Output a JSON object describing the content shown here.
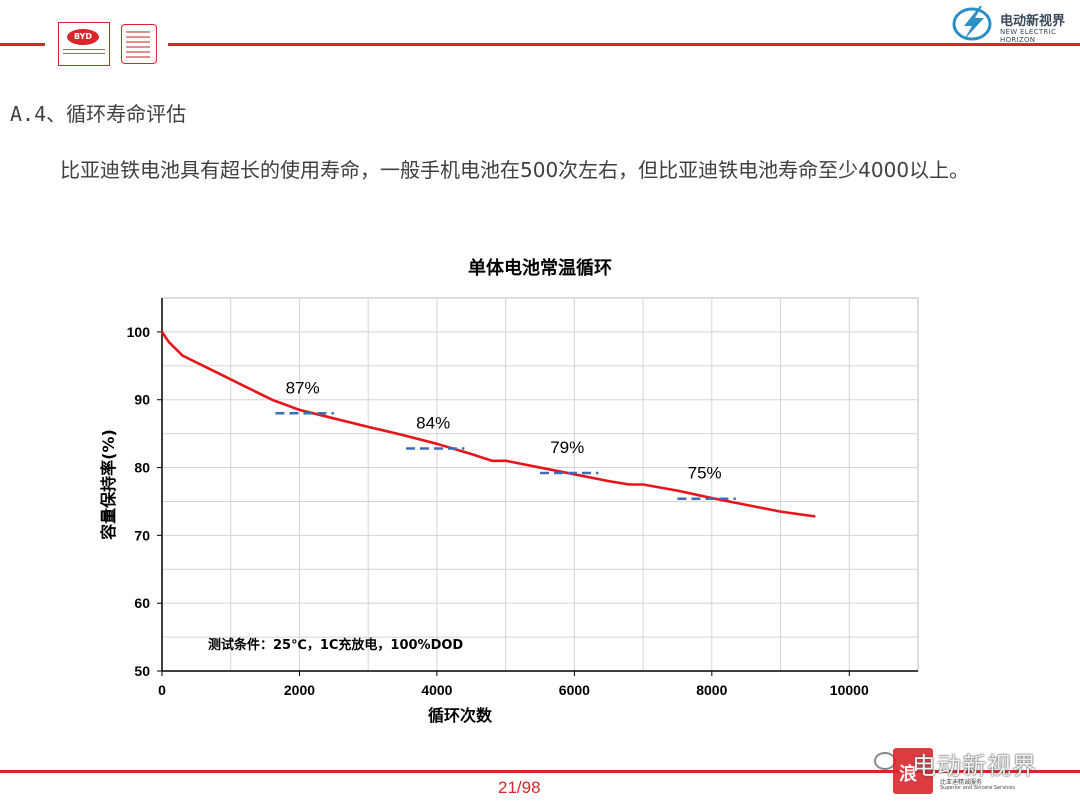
{
  "header": {
    "byd_logo_text": "BYD",
    "ev_logo_name": "电动新视界",
    "ev_logo_en": "NEW ELECTRIC HORIZON",
    "accent_color": "#d9262c"
  },
  "section": {
    "heading": "A.4、循环寿命评估"
  },
  "paragraph": {
    "text": "比亚迪铁电池具有超长的使用寿命，一般手机电池在500次左右，但比亚迪铁电池寿命至少4000以上。"
  },
  "chart_data": {
    "type": "line",
    "title": "单体电池常温循环",
    "xlabel": "循环次数",
    "ylabel": "容量保持率(%)",
    "xlim": [
      0,
      11000
    ],
    "ylim": [
      50,
      105
    ],
    "xticks": [
      0,
      2000,
      4000,
      6000,
      8000,
      10000
    ],
    "yticks": [
      50,
      60,
      70,
      80,
      90,
      100
    ],
    "grid": true,
    "series": [
      {
        "color": "#e8141b",
        "x": [
          0,
          100,
          300,
          500,
          800,
          1200,
          1600,
          2000,
          2400,
          3000,
          3500,
          4000,
          4500,
          4800,
          5000,
          5500,
          6000,
          6500,
          6800,
          7000,
          7500,
          8000,
          8500,
          9000,
          9500
        ],
        "y": [
          100,
          98.5,
          96.5,
          95.5,
          94,
          92,
          90,
          88.5,
          87.5,
          86,
          84.8,
          83.5,
          82,
          81,
          81,
          80,
          79,
          78,
          77.5,
          77.5,
          76.6,
          75.5,
          74.5,
          73.5,
          72.8
        ]
      }
    ],
    "markers": [
      {
        "label": "87%",
        "x_from": 1650,
        "x_to": 2500,
        "y": 88
      },
      {
        "label": "84%",
        "x_from": 3550,
        "x_to": 4400,
        "y": 82.8
      },
      {
        "label": "79%",
        "x_from": 5500,
        "x_to": 6350,
        "y": 79.2
      },
      {
        "label": "75%",
        "x_from": 7500,
        "x_to": 8350,
        "y": 75.4
      }
    ],
    "annotation": "测试条件：25℃，1C充放电，100%DOD"
  },
  "footer": {
    "page": "21/98",
    "watermark_text": "电动新视界",
    "watermark_seal": "浪",
    "watermark_sub1": "比亚迪精诚服务",
    "watermark_sub2": "Superior and Sincere Services"
  }
}
